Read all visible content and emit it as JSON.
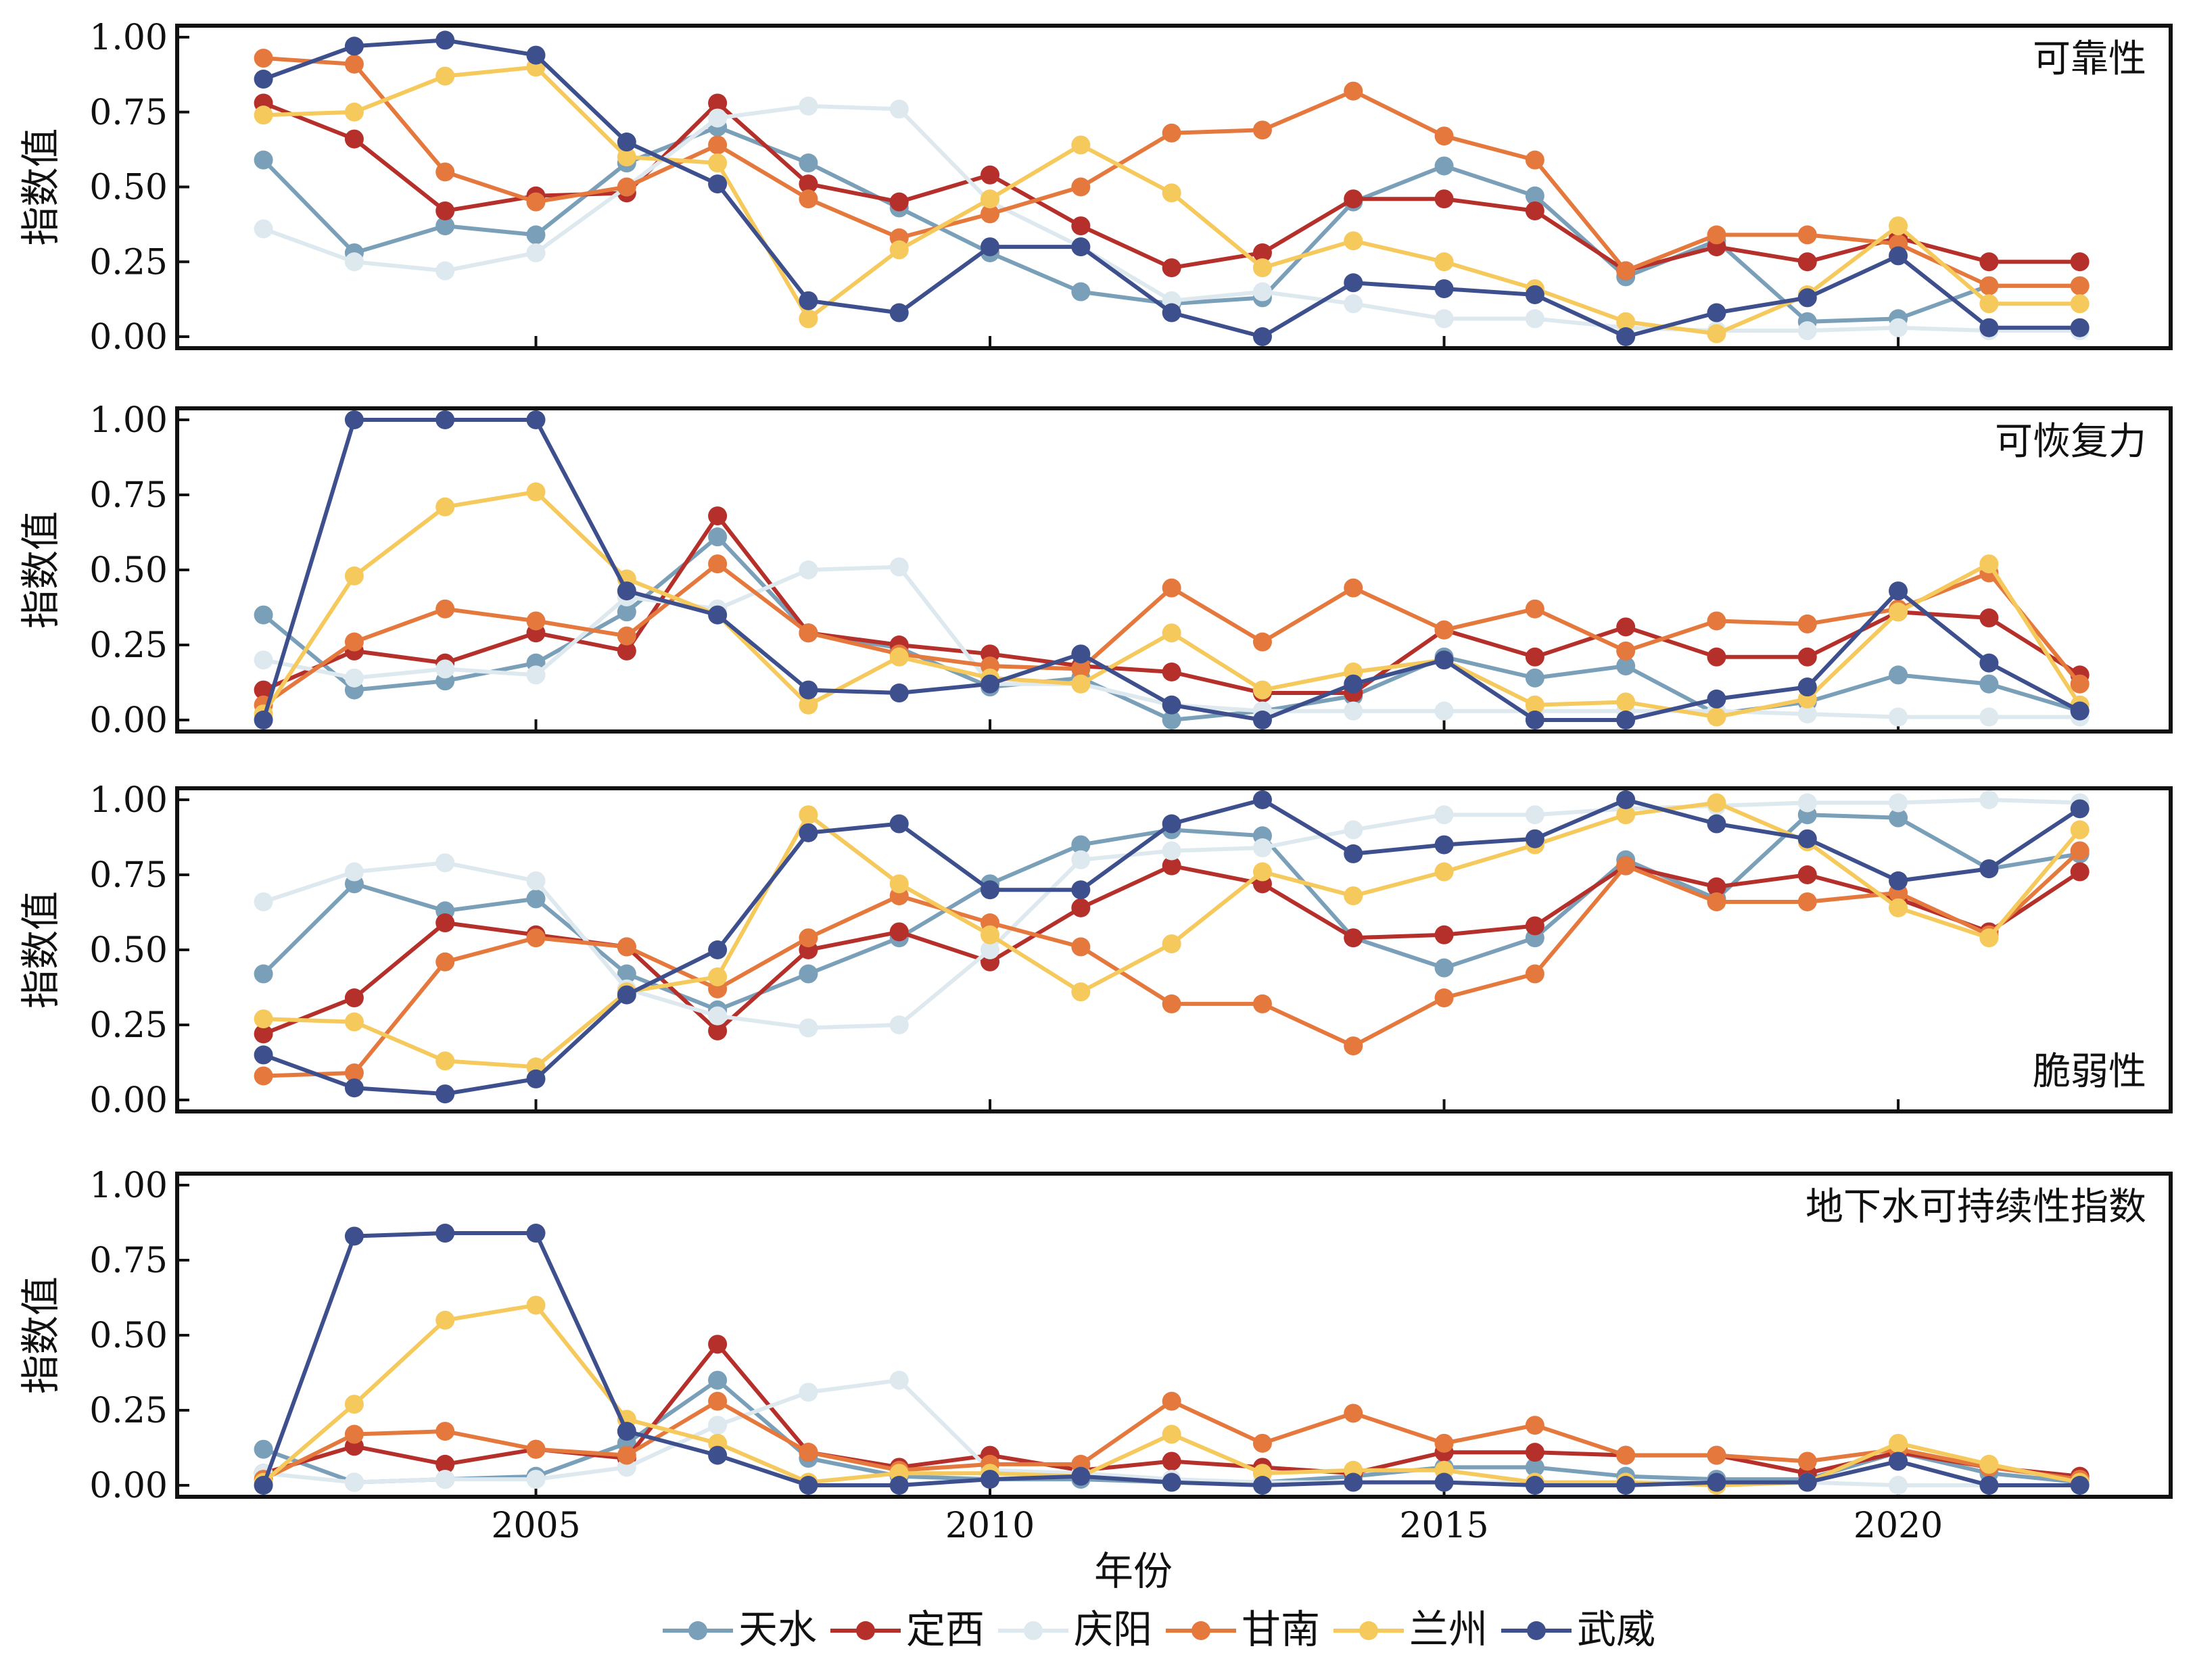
{
  "chart_data": {
    "type": "line",
    "x": [
      2002,
      2003,
      2004,
      2005,
      2006,
      2007,
      2008,
      2009,
      2010,
      2011,
      2012,
      2013,
      2014,
      2015,
      2016,
      2017,
      2018,
      2019,
      2020,
      2021,
      2022
    ],
    "xlabel": "年份",
    "xticks": [
      "2005",
      "2010",
      "2015",
      "2020"
    ],
    "yticks": [
      "1.00",
      "0.75",
      "0.50",
      "0.25",
      "0.00"
    ],
    "ylim": [
      0,
      1
    ],
    "legend": {
      "placement": "bottom",
      "entries": [
        {
          "name": "天水",
          "color": "#7a9fb9"
        },
        {
          "name": "定西",
          "color": "#b5302a"
        },
        {
          "name": "庆阳",
          "color": "#dde9ef"
        },
        {
          "name": "甘南",
          "color": "#e5793d"
        },
        {
          "name": "兰州",
          "color": "#f5c95c"
        },
        {
          "name": "武威",
          "color": "#3d4f8c"
        }
      ]
    },
    "panels": [
      {
        "title": "可靠性",
        "ylabel": "指数值",
        "title_position": "top-right",
        "series": [
          {
            "name": "天水",
            "values": [
              0.59,
              0.28,
              0.37,
              0.34,
              0.58,
              0.7,
              0.58,
              0.43,
              0.28,
              0.15,
              0.11,
              0.13,
              0.45,
              0.57,
              0.47,
              0.2,
              0.32,
              0.05,
              0.06,
              0.17,
              0.17
            ]
          },
          {
            "name": "定西",
            "values": [
              0.78,
              0.66,
              0.42,
              0.47,
              0.48,
              0.78,
              0.51,
              0.45,
              0.54,
              0.37,
              0.23,
              0.28,
              0.46,
              0.46,
              0.42,
              0.22,
              0.3,
              0.25,
              0.33,
              0.25,
              0.25
            ]
          },
          {
            "name": "庆阳",
            "values": [
              0.36,
              0.25,
              0.22,
              0.28,
              0.5,
              0.73,
              0.77,
              0.76,
              0.45,
              0.3,
              0.12,
              0.15,
              0.11,
              0.06,
              0.06,
              0.03,
              0.02,
              0.02,
              0.03,
              0.02,
              0.02
            ]
          },
          {
            "name": "甘南",
            "values": [
              0.93,
              0.91,
              0.55,
              0.45,
              0.5,
              0.64,
              0.46,
              0.33,
              0.41,
              0.5,
              0.68,
              0.69,
              0.82,
              0.67,
              0.59,
              0.22,
              0.34,
              0.34,
              0.31,
              0.17,
              0.17
            ]
          },
          {
            "name": "兰州",
            "values": [
              0.74,
              0.75,
              0.87,
              0.9,
              0.6,
              0.58,
              0.06,
              0.29,
              0.46,
              0.64,
              0.48,
              0.23,
              0.32,
              0.25,
              0.16,
              0.05,
              0.01,
              0.14,
              0.37,
              0.11,
              0.11
            ]
          },
          {
            "name": "武威",
            "values": [
              0.86,
              0.97,
              0.99,
              0.94,
              0.65,
              0.51,
              0.12,
              0.08,
              0.3,
              0.3,
              0.08,
              0.0,
              0.18,
              0.16,
              0.14,
              0.0,
              0.08,
              0.13,
              0.27,
              0.03,
              0.03
            ]
          }
        ]
      },
      {
        "title": "可恢复力",
        "ylabel": "指数值",
        "title_position": "top-right",
        "series": [
          {
            "name": "天水",
            "values": [
              0.35,
              0.1,
              0.13,
              0.19,
              0.36,
              0.61,
              0.29,
              0.24,
              0.11,
              0.14,
              0.0,
              0.03,
              0.08,
              0.21,
              0.14,
              0.18,
              0.02,
              0.06,
              0.15,
              0.12,
              0.03
            ]
          },
          {
            "name": "定西",
            "values": [
              0.1,
              0.23,
              0.19,
              0.29,
              0.23,
              0.68,
              0.29,
              0.25,
              0.22,
              0.18,
              0.16,
              0.09,
              0.09,
              0.3,
              0.21,
              0.31,
              0.21,
              0.21,
              0.36,
              0.34,
              0.15
            ]
          },
          {
            "name": "庆阳",
            "values": [
              0.2,
              0.14,
              0.17,
              0.15,
              0.41,
              0.37,
              0.5,
              0.51,
              0.12,
              0.12,
              0.05,
              0.03,
              0.03,
              0.03,
              0.03,
              0.03,
              0.03,
              0.02,
              0.01,
              0.01,
              0.01
            ]
          },
          {
            "name": "甘南",
            "values": [
              0.05,
              0.26,
              0.37,
              0.33,
              0.28,
              0.52,
              0.29,
              0.22,
              0.18,
              0.17,
              0.44,
              0.26,
              0.44,
              0.3,
              0.37,
              0.23,
              0.33,
              0.32,
              0.37,
              0.49,
              0.12
            ]
          },
          {
            "name": "兰州",
            "values": [
              0.02,
              0.48,
              0.71,
              0.76,
              0.47,
              0.35,
              0.05,
              0.21,
              0.14,
              0.12,
              0.29,
              0.1,
              0.16,
              0.2,
              0.05,
              0.06,
              0.01,
              0.07,
              0.36,
              0.52,
              0.05
            ]
          },
          {
            "name": "武威",
            "values": [
              0.0,
              1.0,
              1.0,
              1.0,
              0.43,
              0.35,
              0.1,
              0.09,
              0.12,
              0.22,
              0.05,
              0.0,
              0.12,
              0.2,
              0.0,
              0.0,
              0.07,
              0.11,
              0.43,
              0.19,
              0.03
            ]
          }
        ]
      },
      {
        "title": "脆弱性",
        "ylabel": "指数值",
        "title_position": "bottom-right",
        "series": [
          {
            "name": "天水",
            "values": [
              0.42,
              0.72,
              0.63,
              0.67,
              0.42,
              0.3,
              0.42,
              0.54,
              0.72,
              0.85,
              0.9,
              0.88,
              0.54,
              0.44,
              0.54,
              0.8,
              0.67,
              0.95,
              0.94,
              0.77,
              0.82
            ]
          },
          {
            "name": "定西",
            "values": [
              0.22,
              0.34,
              0.59,
              0.55,
              0.51,
              0.23,
              0.5,
              0.56,
              0.46,
              0.64,
              0.78,
              0.72,
              0.54,
              0.55,
              0.58,
              0.78,
              0.71,
              0.75,
              0.67,
              0.56,
              0.76
            ]
          },
          {
            "name": "庆阳",
            "values": [
              0.66,
              0.76,
              0.79,
              0.73,
              0.37,
              0.28,
              0.24,
              0.25,
              0.5,
              0.8,
              0.83,
              0.84,
              0.9,
              0.95,
              0.95,
              0.97,
              0.98,
              0.99,
              0.99,
              1.0,
              0.99
            ]
          },
          {
            "name": "甘南",
            "values": [
              0.08,
              0.09,
              0.46,
              0.54,
              0.51,
              0.37,
              0.54,
              0.68,
              0.59,
              0.51,
              0.32,
              0.32,
              0.18,
              0.34,
              0.42,
              0.78,
              0.66,
              0.66,
              0.69,
              0.55,
              0.83
            ]
          },
          {
            "name": "兰州",
            "values": [
              0.27,
              0.26,
              0.13,
              0.11,
              0.36,
              0.41,
              0.95,
              0.72,
              0.55,
              0.36,
              0.52,
              0.76,
              0.68,
              0.76,
              0.85,
              0.95,
              0.99,
              0.86,
              0.64,
              0.54,
              0.9
            ]
          },
          {
            "name": "武威",
            "values": [
              0.15,
              0.04,
              0.02,
              0.07,
              0.35,
              0.5,
              0.89,
              0.92,
              0.7,
              0.7,
              0.92,
              1.0,
              0.82,
              0.85,
              0.87,
              1.0,
              0.92,
              0.87,
              0.73,
              0.77,
              0.97
            ]
          }
        ]
      },
      {
        "title": "地下水可持续性指数",
        "ylabel": "指数值",
        "title_position": "top-right",
        "series": [
          {
            "name": "天水",
            "values": [
              0.12,
              0.01,
              0.02,
              0.03,
              0.14,
              0.35,
              0.09,
              0.03,
              0.02,
              0.02,
              0.01,
              0.01,
              0.03,
              0.06,
              0.06,
              0.03,
              0.02,
              0.02,
              0.11,
              0.04,
              0.01
            ]
          },
          {
            "name": "定西",
            "values": [
              0.04,
              0.13,
              0.07,
              0.12,
              0.09,
              0.47,
              0.11,
              0.06,
              0.1,
              0.05,
              0.08,
              0.06,
              0.04,
              0.11,
              0.11,
              0.1,
              0.1,
              0.04,
              0.11,
              0.06,
              0.03
            ]
          },
          {
            "name": "庆阳",
            "values": [
              0.04,
              0.01,
              0.02,
              0.02,
              0.06,
              0.2,
              0.31,
              0.35,
              0.05,
              0.04,
              0.02,
              0.01,
              0.01,
              0.01,
              0.01,
              0.01,
              0.01,
              0.01,
              0.0,
              0.0,
              0.0
            ]
          },
          {
            "name": "甘南",
            "values": [
              0.02,
              0.17,
              0.18,
              0.12,
              0.1,
              0.28,
              0.11,
              0.05,
              0.07,
              0.07,
              0.28,
              0.14,
              0.24,
              0.14,
              0.2,
              0.1,
              0.1,
              0.08,
              0.12,
              0.06,
              0.02
            ]
          },
          {
            "name": "兰州",
            "values": [
              0.01,
              0.27,
              0.55,
              0.6,
              0.22,
              0.14,
              0.01,
              0.04,
              0.04,
              0.03,
              0.17,
              0.04,
              0.05,
              0.05,
              0.01,
              0.01,
              0.0,
              0.01,
              0.14,
              0.07,
              0.01
            ]
          },
          {
            "name": "武威",
            "values": [
              0.0,
              0.83,
              0.84,
              0.84,
              0.18,
              0.1,
              0.0,
              0.0,
              0.02,
              0.03,
              0.01,
              0.0,
              0.01,
              0.01,
              0.0,
              0.0,
              0.01,
              0.01,
              0.08,
              0.0,
              0.0
            ]
          }
        ]
      }
    ]
  }
}
